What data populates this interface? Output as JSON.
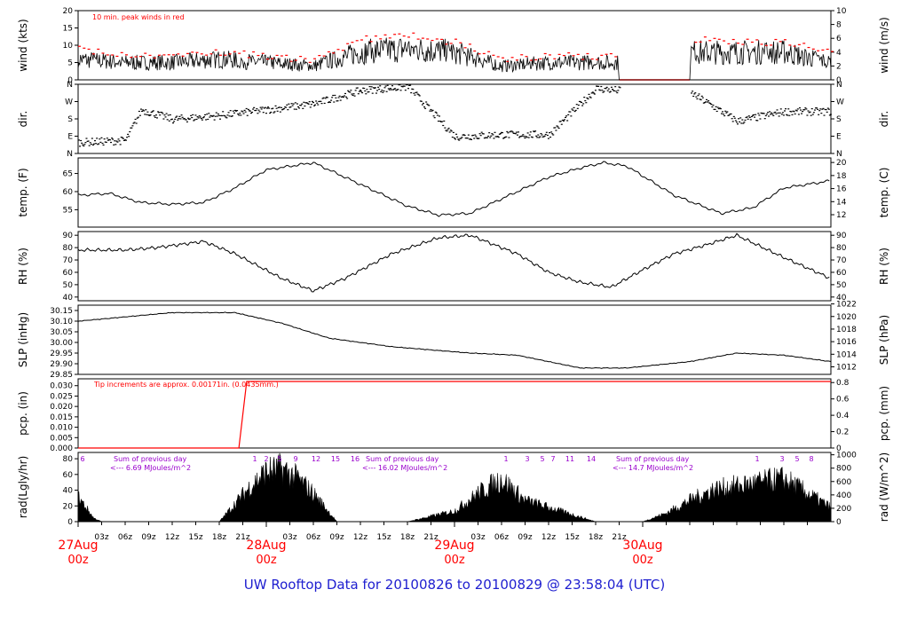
{
  "title": "UW Rooftop Data for 20100826  to  20100829 @ 23:58:04  (UTC)",
  "colors": {
    "data": "#000000",
    "peak": "#ff0000",
    "annotation": "#9900cc",
    "day_label": "#ff0000",
    "title": "#2020d0"
  },
  "chart_data": [
    {
      "type": "line",
      "name": "wind",
      "ylabel_left": "wind (kts)",
      "ylabel_right": "wind (m/s)",
      "ylim": [
        0,
        20
      ],
      "yticks_left": [
        0,
        5,
        10,
        15,
        20
      ],
      "ylim_right": [
        0,
        10
      ],
      "yticks_right": [
        0,
        2,
        4,
        6,
        8,
        10
      ],
      "annotation": "10 min. peak winds in red",
      "x_hours": [
        0,
        6,
        12,
        18,
        24,
        30,
        36,
        42,
        48,
        54,
        60,
        66,
        72,
        78,
        84,
        90,
        96
      ],
      "values": [
        6,
        5,
        5,
        6,
        5,
        4,
        8,
        9,
        8,
        4,
        5,
        5,
        5,
        8,
        8,
        8,
        5
      ],
      "peak_values": [
        9,
        7,
        7,
        8,
        7,
        6,
        12,
        13,
        11,
        6,
        7,
        7,
        8,
        12,
        11,
        11,
        8
      ],
      "missing_hours": [
        69,
        78
      ]
    },
    {
      "type": "scatter",
      "name": "dir.",
      "ylabel_left": "dir.",
      "ylabel_right": "dir.",
      "ytick_labels": [
        "N",
        "E",
        "S",
        "W",
        "N"
      ],
      "yticks_degrees": [
        0,
        90,
        180,
        270,
        360
      ],
      "x_hours": [
        0,
        6,
        8,
        12,
        18,
        24,
        30,
        36,
        42,
        48,
        54,
        60,
        66,
        72,
        78,
        84,
        90,
        96
      ],
      "values": [
        60,
        70,
        230,
        180,
        200,
        230,
        260,
        330,
        350,
        90,
        100,
        100,
        340,
        320,
        320,
        170,
        220,
        220
      ]
    },
    {
      "type": "line",
      "name": "temp.",
      "ylabel_left": "temp. (F)",
      "ylabel_right": "temp. (C)",
      "yticks_left": [
        55,
        60,
        65
      ],
      "yticks_right": [
        12,
        14,
        16,
        18,
        20
      ],
      "ylim_F": [
        50.2,
        69.3
      ],
      "ylim_C": [
        10.1,
        20.7
      ],
      "x_hours": [
        0,
        4,
        8,
        12,
        16,
        20,
        24,
        30,
        36,
        42,
        46,
        50,
        56,
        60,
        64,
        67,
        70,
        76,
        82,
        86,
        90,
        96
      ],
      "values": [
        59,
        59.5,
        57,
        56.5,
        57,
        61,
        66,
        68,
        62,
        56,
        53.5,
        54,
        60,
        64,
        66.5,
        68,
        67,
        59,
        54,
        55.5,
        61,
        63
      ]
    },
    {
      "type": "line",
      "name": "RH",
      "ylabel_left": "RH (%)",
      "ylabel_right": "RH (%)",
      "ylim": [
        40,
        90
      ],
      "yticks_left": [
        40,
        50,
        60,
        70,
        80,
        90
      ],
      "yticks_right": [
        40,
        50,
        60,
        70,
        80,
        90
      ],
      "x_hours": [
        0,
        6,
        10,
        16,
        20,
        26,
        30,
        34,
        40,
        46,
        50,
        56,
        60,
        64,
        68,
        72,
        76,
        80,
        84,
        90,
        96
      ],
      "values": [
        78,
        78,
        80,
        85,
        75,
        55,
        45,
        55,
        75,
        88,
        90,
        75,
        60,
        52,
        48,
        62,
        75,
        82,
        90,
        72,
        55
      ]
    },
    {
      "type": "line",
      "name": "SLP",
      "ylabel_left": "SLP (inHg)",
      "ylabel_right": "SLP (hPa)",
      "ylim": [
        29.85,
        30.15
      ],
      "yticks_left": [
        29.85,
        29.9,
        29.95,
        30.0,
        30.05,
        30.1,
        30.15
      ],
      "yticks_right": [
        1012,
        1014,
        1016,
        1018,
        1020,
        1022
      ],
      "x_hours": [
        0,
        6,
        12,
        20,
        26,
        32,
        40,
        50,
        56,
        64,
        70,
        78,
        84,
        90,
        96
      ],
      "values": [
        30.1,
        30.12,
        30.14,
        30.14,
        30.09,
        30.02,
        29.98,
        29.95,
        29.94,
        29.88,
        29.88,
        29.91,
        29.95,
        29.94,
        29.91
      ]
    },
    {
      "type": "line",
      "name": "pcp.",
      "ylabel_left": "pcp. (in)",
      "ylabel_right": "pcp. (mm)",
      "ylim": [
        0,
        0.032
      ],
      "yticks_left": [
        0,
        0.005,
        0.01,
        0.015,
        0.02,
        0.025,
        0.03
      ],
      "ytick_labels_left": [
        "0.000",
        "0.005",
        "0.010",
        "0.015",
        "0.020",
        "0.025",
        "0.030"
      ],
      "yticks_right": [
        0,
        0.2,
        0.4,
        0.6,
        0.8
      ],
      "annotation": "Tip increments are approx. 0.00171in. (0.0435mm.)",
      "x_hours": [
        0,
        20.5,
        21.5,
        96
      ],
      "values": [
        0,
        0,
        0.032,
        0.032
      ]
    },
    {
      "type": "area",
      "name": "rad",
      "ylabel_left": "rad(Lgly/hr)",
      "ylabel_right": "rad (W/m^2)",
      "ylim": [
        0,
        90
      ],
      "yticks_left": [
        0,
        20,
        40,
        60,
        80
      ],
      "yticks_right": [
        0,
        200,
        400,
        600,
        800,
        1000
      ],
      "annotations": [
        {
          "line1": "Sum of previous day",
          "line2": "<--- 6.69 MJoules/m^2"
        },
        {
          "line1": "Sum of previous day",
          "line2": "<--- 16.02 MJoules/m^2"
        },
        {
          "line1": "Sum of previous day",
          "line2": "<--- 14.7 MJoules/m^2"
        }
      ],
      "hour_marks": [
        "6",
        "1",
        "2",
        "5",
        "9",
        "12",
        "15",
        "16",
        "1",
        "3",
        "5",
        "7",
        "11",
        "14",
        "1",
        "3",
        "5",
        "8"
      ],
      "x_hours": [
        0,
        1,
        2,
        3,
        18,
        20,
        22,
        24,
        26,
        28,
        30,
        33,
        42,
        48,
        51,
        54,
        57,
        66,
        72,
        75,
        78,
        81,
        90,
        96
      ],
      "values": [
        35,
        20,
        5,
        0,
        0,
        25,
        50,
        70,
        74,
        60,
        40,
        0,
        0,
        15,
        40,
        60,
        30,
        0,
        0,
        12,
        30,
        45,
        60,
        20
      ]
    }
  ],
  "x_axis": {
    "range_hours": [
      0,
      96
    ],
    "tick_labels": [
      "03z",
      "06z",
      "09z",
      "12z",
      "15z",
      "18z",
      "21z",
      "03z",
      "06z",
      "09z",
      "12z",
      "15z",
      "18z",
      "21z",
      "03z",
      "06z",
      "09z",
      "12z",
      "15z",
      "18z",
      "21z"
    ],
    "day_labels": [
      {
        "day": "27Aug",
        "time": "00z"
      },
      {
        "day": "28Aug",
        "time": "00z"
      },
      {
        "day": "29Aug",
        "time": "00z"
      },
      {
        "day": "30Aug",
        "time": "00z"
      }
    ]
  }
}
